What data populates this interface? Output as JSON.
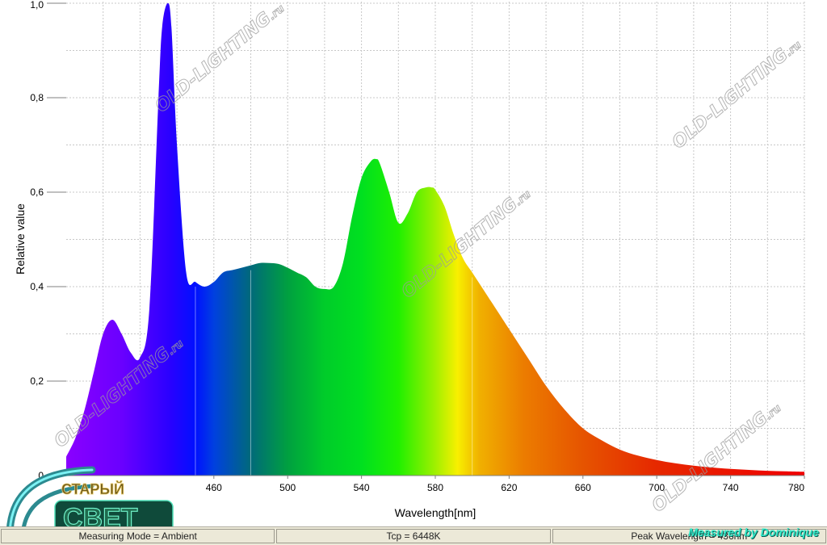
{
  "chart_data": {
    "type": "area",
    "xlabel": "Wavelength[nm]",
    "ylabel": "Relative value",
    "xlim": [
      380,
      780
    ],
    "ylim": [
      0,
      1.0
    ],
    "x_ticks": [
      "460",
      "500",
      "540",
      "580",
      "620",
      "660",
      "700",
      "740",
      "780"
    ],
    "y_ticks": [
      "0",
      "0,2",
      "0,4",
      "0,6",
      "0,8",
      "1,0"
    ],
    "grid": true,
    "fill": "rainbow spectrum gradient by wavelength",
    "x": [
      380,
      385,
      390,
      395,
      400,
      405,
      410,
      415,
      420,
      425,
      430,
      432,
      435,
      437,
      440,
      445,
      450,
      455,
      460,
      465,
      470,
      475,
      480,
      485,
      490,
      495,
      500,
      505,
      510,
      515,
      520,
      525,
      530,
      535,
      540,
      545,
      548,
      550,
      555,
      560,
      565,
      570,
      575,
      578,
      580,
      585,
      590,
      595,
      600,
      605,
      610,
      620,
      630,
      640,
      650,
      660,
      670,
      680,
      690,
      700,
      710,
      720,
      730,
      740,
      750,
      760,
      770,
      780
    ],
    "values": [
      0.04,
      0.08,
      0.14,
      0.22,
      0.3,
      0.33,
      0.3,
      0.26,
      0.25,
      0.35,
      0.8,
      0.95,
      1.0,
      0.95,
      0.7,
      0.43,
      0.41,
      0.4,
      0.41,
      0.43,
      0.435,
      0.44,
      0.445,
      0.45,
      0.45,
      0.448,
      0.44,
      0.43,
      0.42,
      0.4,
      0.395,
      0.4,
      0.45,
      0.55,
      0.63,
      0.665,
      0.67,
      0.66,
      0.6,
      0.535,
      0.555,
      0.6,
      0.61,
      0.61,
      0.605,
      0.57,
      0.51,
      0.46,
      0.43,
      0.4,
      0.37,
      0.31,
      0.25,
      0.19,
      0.14,
      0.1,
      0.075,
      0.055,
      0.042,
      0.033,
      0.026,
      0.021,
      0.017,
      0.014,
      0.012,
      0.01,
      0.009,
      0.008
    ]
  },
  "watermark_text": "OLD-LIGHTING",
  "watermark_suffix": ".ru",
  "status_bar": {
    "measuring_mode": "Measuring Mode = Ambient",
    "tcp": "Tcp = 6448K",
    "peak_wavelength": "Peak Wavelength = 436nm"
  },
  "credit": "Measured by Dominique",
  "logo": {
    "top_text": "СТАРЫЙ",
    "main_text": "СВЕТ"
  }
}
